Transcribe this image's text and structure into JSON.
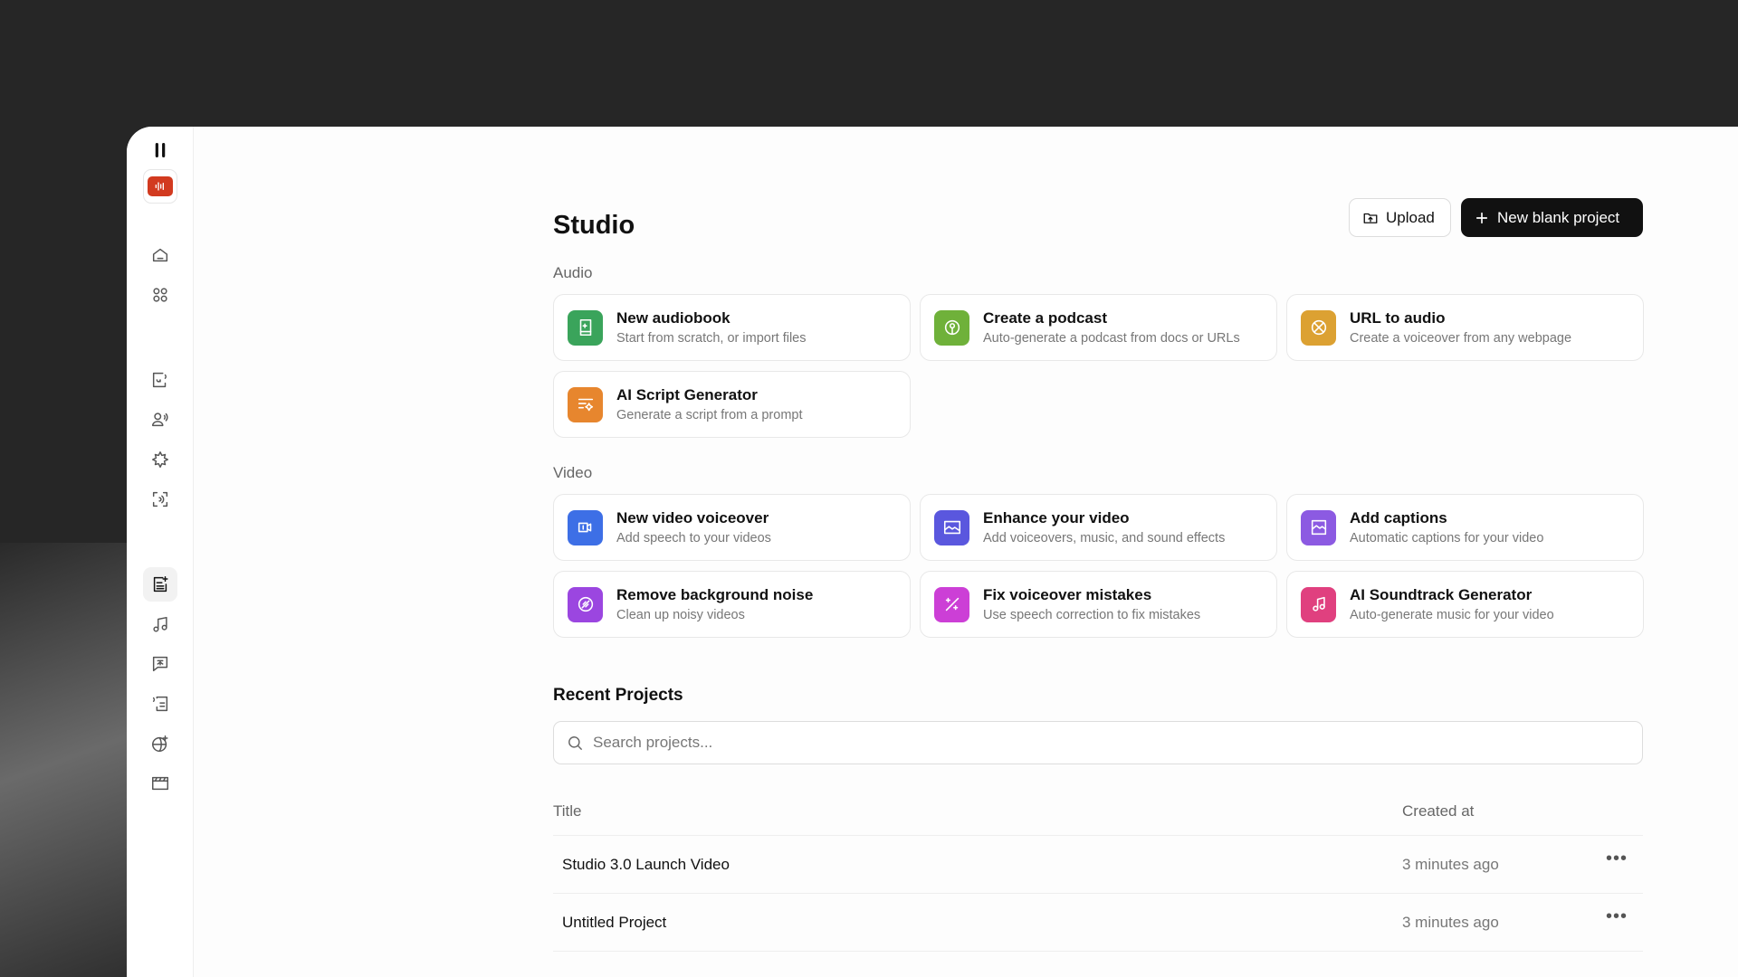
{
  "page": {
    "title": "Studio"
  },
  "toolbar": {
    "upload_label": "Upload",
    "new_project_label": "New blank project"
  },
  "sidebar": {
    "items": [
      "pause-icon",
      "app-logo",
      "home-icon",
      "apps-grid-icon",
      "text-to-speech-icon",
      "voice-clone-icon",
      "sound-effects-icon",
      "voice-isolator-icon",
      "studio-icon",
      "music-icon",
      "dubbing-icon",
      "speech-to-text-icon",
      "agents-icon",
      "video-icon"
    ],
    "active": "studio-icon",
    "logo_color": "#d23a1f"
  },
  "audio": {
    "label": "Audio",
    "cards": [
      {
        "title": "New audiobook",
        "subtitle": "Start from scratch, or import files",
        "icon": "book-icon",
        "color": "#3aa45b"
      },
      {
        "title": "Create a podcast",
        "subtitle": "Auto-generate a podcast from docs or URLs",
        "icon": "podcast-icon",
        "color": "#6fb13a"
      },
      {
        "title": "URL to audio",
        "subtitle": "Create a voiceover from any webpage",
        "icon": "globe-link-icon",
        "color": "#dca132"
      },
      {
        "title": "AI Script Generator",
        "subtitle": "Generate a script from a prompt",
        "icon": "script-sparkle-icon",
        "color": "#e7862e"
      }
    ]
  },
  "video": {
    "label": "Video",
    "cards": [
      {
        "title": "New video voiceover",
        "subtitle": "Add speech to your videos",
        "icon": "video-voice-icon",
        "color": "#3d6fe6"
      },
      {
        "title": "Enhance your video",
        "subtitle": "Add voiceovers, music, and sound effects",
        "icon": "image-enhance-icon",
        "color": "#5a57de"
      },
      {
        "title": "Add captions",
        "subtitle": "Automatic captions for your video",
        "icon": "captions-icon",
        "color": "#8c5ae2"
      },
      {
        "title": "Remove background noise",
        "subtitle": "Clean up noisy videos",
        "icon": "noise-remove-icon",
        "color": "#9b46e0"
      },
      {
        "title": "Fix voiceover mistakes",
        "subtitle": "Use speech correction to fix mistakes",
        "icon": "wand-icon",
        "color": "#cc3fd6"
      },
      {
        "title": "AI Soundtrack Generator",
        "subtitle": "Auto-generate music for your video",
        "icon": "music-note-icon",
        "color": "#e0407f"
      }
    ]
  },
  "recent": {
    "label": "Recent Projects",
    "search_placeholder": "Search projects...",
    "columns": [
      "Title",
      "Created at"
    ],
    "rows": [
      {
        "title": "Studio 3.0 Launch Video",
        "created": "3 minutes ago"
      },
      {
        "title": "Untitled Project",
        "created": "3 minutes ago"
      }
    ]
  }
}
